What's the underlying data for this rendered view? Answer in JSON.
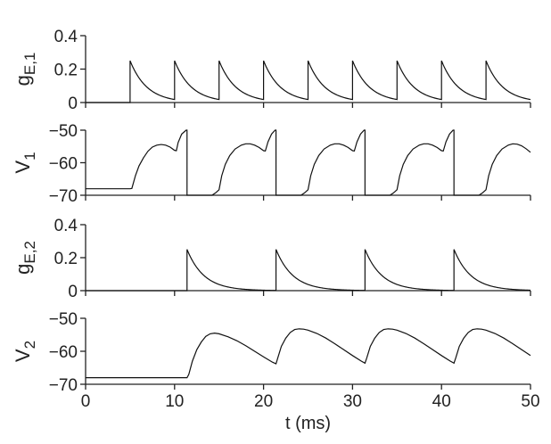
{
  "chart_data": [
    {
      "type": "line",
      "panel": "gE1",
      "ylabel_main": "g",
      "ylabel_sub": "E,1",
      "ylim": [
        0,
        0.4
      ],
      "yticks": [
        0,
        0.2,
        0.4
      ],
      "ytick_labels": [
        "0",
        "0.2",
        "0.4"
      ],
      "xlim": [
        0,
        50
      ],
      "series": [
        {
          "kind": "exp-decay-pulses",
          "pulse_times_ms": [
            5,
            10,
            15,
            20,
            25,
            30,
            35,
            40,
            45
          ],
          "peak": 0.25,
          "tau_ms": 1.9,
          "baseline": 0
        }
      ]
    },
    {
      "type": "line",
      "panel": "V1",
      "ylabel_main": "V",
      "ylabel_sub": "1",
      "ylim": [
        -70,
        -50
      ],
      "yticks": [
        -70,
        -60,
        -50
      ],
      "ytick_labels": [
        "−70",
        "−60",
        "−50"
      ],
      "xlim": [
        0,
        50
      ],
      "series": [
        {
          "kind": "voltage",
          "points": [
            [
              0,
              -68
            ],
            [
              5,
              -68
            ],
            [
              5.2,
              -67.9
            ],
            [
              5.6,
              -64
            ],
            [
              6,
              -61
            ],
            [
              6.5,
              -58.5
            ],
            [
              7,
              -56.5
            ],
            [
              7.5,
              -55.2
            ],
            [
              8,
              -54.6
            ],
            [
              8.5,
              -54.4
            ],
            [
              9,
              -54.6
            ],
            [
              9.5,
              -55.2
            ],
            [
              10,
              -56.2
            ],
            [
              10.2,
              -56.3
            ],
            [
              10.4,
              -53.8
            ],
            [
              10.8,
              -51.2
            ],
            [
              11.3,
              -50
            ],
            [
              11.4,
              -50
            ],
            [
              11.4,
              -70
            ],
            [
              14.2,
              -70
            ],
            [
              14.6,
              -69.3
            ],
            [
              15,
              -68.3
            ],
            [
              15.3,
              -64
            ],
            [
              15.7,
              -60.5
            ],
            [
              16.2,
              -57.8
            ],
            [
              16.8,
              -55.8
            ],
            [
              17.5,
              -54.6
            ],
            [
              18,
              -54.2
            ],
            [
              18.5,
              -54.2
            ],
            [
              19,
              -54.6
            ],
            [
              19.5,
              -55.3
            ],
            [
              20,
              -56.3
            ],
            [
              20.2,
              -56.4
            ],
            [
              20.5,
              -53.6
            ],
            [
              20.9,
              -51.2
            ],
            [
              21.3,
              -50
            ],
            [
              21.4,
              -50
            ],
            [
              21.4,
              -70
            ],
            [
              24.2,
              -70
            ],
            [
              24.6,
              -69.3
            ],
            [
              25,
              -68.3
            ],
            [
              25.3,
              -64
            ],
            [
              25.7,
              -60.5
            ],
            [
              26.2,
              -57.8
            ],
            [
              26.8,
              -55.8
            ],
            [
              27.5,
              -54.6
            ],
            [
              28,
              -54.2
            ],
            [
              28.5,
              -54.2
            ],
            [
              29,
              -54.6
            ],
            [
              29.5,
              -55.3
            ],
            [
              30,
              -56.3
            ],
            [
              30.2,
              -56.4
            ],
            [
              30.5,
              -53.6
            ],
            [
              30.9,
              -51.2
            ],
            [
              31.3,
              -50
            ],
            [
              31.4,
              -50
            ],
            [
              31.4,
              -70
            ],
            [
              34.2,
              -70
            ],
            [
              34.6,
              -69.3
            ],
            [
              35,
              -68.3
            ],
            [
              35.3,
              -64
            ],
            [
              35.7,
              -60.5
            ],
            [
              36.2,
              -57.8
            ],
            [
              36.8,
              -55.8
            ],
            [
              37.5,
              -54.6
            ],
            [
              38,
              -54.2
            ],
            [
              38.5,
              -54.2
            ],
            [
              39,
              -54.6
            ],
            [
              39.5,
              -55.3
            ],
            [
              40,
              -56.3
            ],
            [
              40.2,
              -56.4
            ],
            [
              40.5,
              -53.6
            ],
            [
              40.9,
              -51.2
            ],
            [
              41.3,
              -50
            ],
            [
              41.4,
              -50
            ],
            [
              41.4,
              -70
            ],
            [
              44.2,
              -70
            ],
            [
              44.6,
              -69.3
            ],
            [
              45,
              -68.3
            ],
            [
              45.3,
              -64
            ],
            [
              45.7,
              -60.5
            ],
            [
              46.2,
              -57.8
            ],
            [
              46.8,
              -55.8
            ],
            [
              47.5,
              -54.6
            ],
            [
              48,
              -54.2
            ],
            [
              48.5,
              -54.3
            ],
            [
              49,
              -54.8
            ],
            [
              49.5,
              -55.7
            ],
            [
              50,
              -56.8
            ]
          ]
        }
      ]
    },
    {
      "type": "line",
      "panel": "gE2",
      "ylabel_main": "g",
      "ylabel_sub": "E,2",
      "ylim": [
        0,
        0.4
      ],
      "yticks": [
        0,
        0.2,
        0.4
      ],
      "ytick_labels": [
        "0",
        "0.2",
        "0.4"
      ],
      "xlim": [
        0,
        50
      ],
      "series": [
        {
          "kind": "exp-decay-pulses",
          "pulse_times_ms": [
            11.4,
            21.4,
            31.4,
            41.4
          ],
          "peak": 0.25,
          "tau_ms": 1.9,
          "baseline": 0
        }
      ]
    },
    {
      "type": "line",
      "panel": "V2",
      "ylabel_main": "V",
      "ylabel_sub": "2",
      "ylim": [
        -70,
        -50
      ],
      "yticks": [
        -70,
        -60,
        -50
      ],
      "ytick_labels": [
        "−70",
        "−60",
        "−50"
      ],
      "xlim": [
        0,
        50
      ],
      "xticks": [
        0,
        10,
        20,
        30,
        40,
        50
      ],
      "xtick_labels": [
        "0",
        "10",
        "20",
        "30",
        "40",
        "50"
      ],
      "xlabel": "t (ms)",
      "series": [
        {
          "kind": "voltage",
          "points": [
            [
              0,
              -68
            ],
            [
              11.4,
              -68
            ],
            [
              11.6,
              -67
            ],
            [
              12,
              -63
            ],
            [
              12.5,
              -59.5
            ],
            [
              13,
              -57.2
            ],
            [
              13.5,
              -55.5
            ],
            [
              14,
              -54.7
            ],
            [
              14.5,
              -54.5
            ],
            [
              15,
              -54.7
            ],
            [
              16,
              -55.6
            ],
            [
              17,
              -56.8
            ],
            [
              18,
              -58.3
            ],
            [
              19,
              -60
            ],
            [
              20,
              -61.7
            ],
            [
              21,
              -63.3
            ],
            [
              21.4,
              -63.8
            ],
            [
              21.6,
              -62
            ],
            [
              22,
              -58.5
            ],
            [
              22.5,
              -56
            ],
            [
              23,
              -54.3
            ],
            [
              23.5,
              -53.4
            ],
            [
              24,
              -53.2
            ],
            [
              24.5,
              -53.3
            ],
            [
              25,
              -53.6
            ],
            [
              26,
              -54.6
            ],
            [
              27,
              -56
            ],
            [
              28,
              -57.7
            ],
            [
              29,
              -59.5
            ],
            [
              30,
              -61.3
            ],
            [
              31,
              -63
            ],
            [
              31.4,
              -63.6
            ],
            [
              31.6,
              -62
            ],
            [
              32,
              -58.5
            ],
            [
              32.5,
              -56
            ],
            [
              33,
              -54.3
            ],
            [
              33.5,
              -53.4
            ],
            [
              34,
              -53.2
            ],
            [
              34.5,
              -53.3
            ],
            [
              35,
              -53.6
            ],
            [
              36,
              -54.6
            ],
            [
              37,
              -56
            ],
            [
              38,
              -57.7
            ],
            [
              39,
              -59.5
            ],
            [
              40,
              -61.3
            ],
            [
              41,
              -63
            ],
            [
              41.4,
              -63.6
            ],
            [
              41.6,
              -62
            ],
            [
              42,
              -58.5
            ],
            [
              42.5,
              -56
            ],
            [
              43,
              -54.3
            ],
            [
              43.5,
              -53.4
            ],
            [
              44,
              -53.2
            ],
            [
              44.5,
              -53.3
            ],
            [
              45,
              -53.6
            ],
            [
              46,
              -54.6
            ],
            [
              47,
              -56
            ],
            [
              48,
              -57.7
            ],
            [
              49,
              -59.5
            ],
            [
              50,
              -61.3
            ]
          ]
        }
      ]
    }
  ]
}
